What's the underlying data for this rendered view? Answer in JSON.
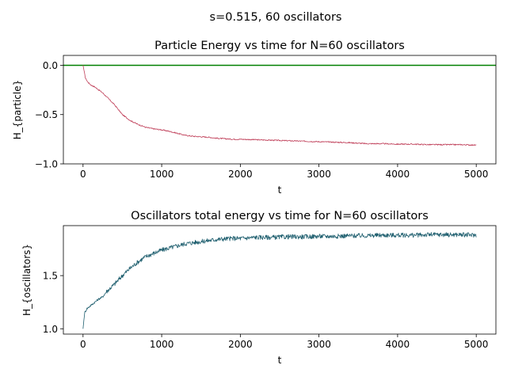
{
  "figure": {
    "suptitle": "s=0.515, 60 oscillators"
  },
  "chart_data": [
    {
      "type": "line",
      "title": "Particle Energy vs time for N=60 oscillators",
      "xlabel": "t",
      "ylabel": "H_{particle}",
      "xlim": [
        -250,
        5250
      ],
      "ylim": [
        -1.0,
        0.1
      ],
      "xticks": [
        0,
        1000,
        2000,
        3000,
        4000,
        5000
      ],
      "xtick_labels": [
        "0",
        "1000",
        "2000",
        "3000",
        "4000",
        "5000"
      ],
      "yticks": [
        0.0,
        -0.5,
        -1.0
      ],
      "ytick_labels": [
        "0.0",
        "−0.5",
        "−1.0"
      ],
      "grid": false,
      "reference_line": {
        "y": 0.0,
        "color": "#008000"
      },
      "series": [
        {
          "color": "#c0405a",
          "x": [
            0,
            30,
            60,
            100,
            150,
            200,
            250,
            300,
            400,
            500,
            600,
            700,
            800,
            900,
            1000,
            1100,
            1200,
            1300,
            1400,
            1500,
            1600,
            1700,
            1800,
            1900,
            2000,
            2200,
            2400,
            2600,
            2800,
            3000,
            3200,
            3400,
            3500,
            3600,
            3800,
            4000,
            4200,
            4400,
            4600,
            4800,
            5000
          ],
          "y": [
            0.0,
            -0.13,
            -0.17,
            -0.2,
            -0.22,
            -0.25,
            -0.28,
            -0.32,
            -0.4,
            -0.5,
            -0.56,
            -0.6,
            -0.63,
            -0.645,
            -0.655,
            -0.67,
            -0.69,
            -0.71,
            -0.72,
            -0.725,
            -0.73,
            -0.74,
            -0.745,
            -0.75,
            -0.75,
            -0.755,
            -0.76,
            -0.765,
            -0.77,
            -0.775,
            -0.78,
            -0.785,
            -0.79,
            -0.795,
            -0.795,
            -0.8,
            -0.8,
            -0.805,
            -0.805,
            -0.805,
            -0.81
          ]
        }
      ]
    },
    {
      "type": "line",
      "title": "Oscillators total energy vs time for N=60 oscillators",
      "xlabel": "t",
      "ylabel": "H_{oscillators}",
      "xlim": [
        -250,
        5250
      ],
      "ylim": [
        0.95,
        1.97
      ],
      "xticks": [
        0,
        1000,
        2000,
        3000,
        4000,
        5000
      ],
      "xtick_labels": [
        "0",
        "1000",
        "2000",
        "3000",
        "4000",
        "5000"
      ],
      "yticks": [
        1.0,
        1.5
      ],
      "ytick_labels": [
        "1.0",
        "1.5"
      ],
      "grid": false,
      "series": [
        {
          "color": "#1f5f6f",
          "x": [
            0,
            20,
            50,
            100,
            150,
            200,
            250,
            300,
            400,
            500,
            600,
            700,
            800,
            900,
            1000,
            1100,
            1200,
            1300,
            1400,
            1500,
            1600,
            1700,
            1800,
            1900,
            2000,
            2200,
            2400,
            2600,
            2800,
            3000,
            3200,
            3400,
            3600,
            3800,
            4000,
            4200,
            4400,
            4600,
            4800,
            5000
          ],
          "y": [
            1.0,
            1.15,
            1.19,
            1.22,
            1.25,
            1.28,
            1.3,
            1.35,
            1.42,
            1.5,
            1.57,
            1.63,
            1.68,
            1.71,
            1.74,
            1.76,
            1.78,
            1.8,
            1.81,
            1.82,
            1.83,
            1.84,
            1.845,
            1.85,
            1.85,
            1.86,
            1.86,
            1.865,
            1.865,
            1.87,
            1.87,
            1.875,
            1.875,
            1.88,
            1.88,
            1.88,
            1.885,
            1.885,
            1.885,
            1.88
          ]
        }
      ]
    }
  ]
}
